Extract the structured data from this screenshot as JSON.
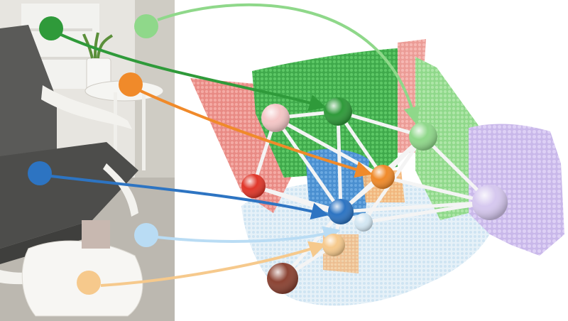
{
  "figure": {
    "photo_panel": "photo-of-room-with-chair-and-plant-stand",
    "point_cloud_panel": "segmented-3d-point-cloud-with-scene-graph"
  },
  "nodes": [
    {
      "id": "wall-green",
      "color": "#2f9a3a"
    },
    {
      "id": "wall-lightgreen",
      "color": "#8fd88a"
    },
    {
      "id": "plant-stand",
      "color": "#f08a2a"
    },
    {
      "id": "chair",
      "color": "#2d74c2"
    },
    {
      "id": "floor",
      "color": "#b9dcf4"
    },
    {
      "id": "pillow",
      "color": "#f6c98c"
    },
    {
      "id": "wall-pink",
      "color": "#f4c6c6"
    },
    {
      "id": "red-object",
      "color": "#e0372a"
    },
    {
      "id": "lavender-object",
      "color": "#d6c8ef"
    },
    {
      "id": "paleblue-object",
      "color": "#d3e7f3"
    },
    {
      "id": "brown-object",
      "color": "#8b4333"
    }
  ],
  "correspondences": [
    {
      "from": "wall-green",
      "color": "#2f9a3a"
    },
    {
      "from": "wall-lightgreen",
      "color": "#8fd88a"
    },
    {
      "from": "plant-stand",
      "color": "#f08a2a"
    },
    {
      "from": "chair",
      "color": "#2d74c2"
    },
    {
      "from": "floor",
      "color": "#b9dcf4"
    },
    {
      "from": "pillow",
      "color": "#f6c98c"
    }
  ],
  "graph_edges": [
    [
      "wall-pink",
      "wall-green"
    ],
    [
      "wall-green",
      "wall-lightgreen"
    ],
    [
      "wall-pink",
      "red-object"
    ],
    [
      "wall-pink",
      "chair"
    ],
    [
      "wall-pink",
      "plant-stand"
    ],
    [
      "wall-green",
      "chair"
    ],
    [
      "wall-green",
      "plant-stand"
    ],
    [
      "wall-lightgreen",
      "plant-stand"
    ],
    [
      "wall-lightgreen",
      "chair"
    ],
    [
      "wall-lightgreen",
      "lavender-object"
    ],
    [
      "wall-lightgreen",
      "paleblue-object"
    ],
    [
      "red-object",
      "chair"
    ],
    [
      "red-object",
      "paleblue-object"
    ],
    [
      "plant-stand",
      "lavender-object"
    ],
    [
      "plant-stand",
      "chair"
    ],
    [
      "chair",
      "lavender-object"
    ],
    [
      "chair",
      "pillow"
    ],
    [
      "chair",
      "brown-object"
    ],
    [
      "paleblue-object",
      "lavender-object"
    ],
    [
      "pillow",
      "brown-object"
    ]
  ]
}
